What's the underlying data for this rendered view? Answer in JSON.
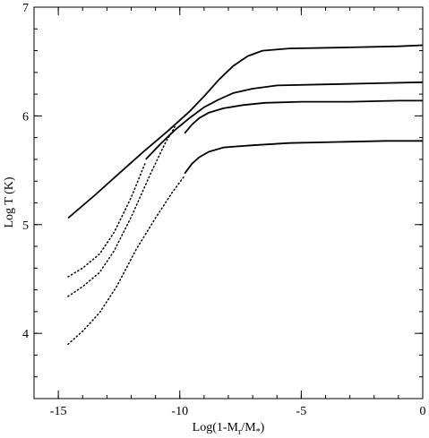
{
  "chart_data": {
    "type": "line",
    "xlabel": {
      "main": "Log(1-M",
      "sub1": "r",
      "mid": "/M",
      "sub2": "*",
      "end": ")"
    },
    "ylabel": "Log T (K)",
    "xlim": [
      -16,
      0
    ],
    "ylim": [
      3.4,
      7
    ],
    "xticks": [
      -15,
      -10,
      -5,
      0
    ],
    "yticks": [
      4,
      5,
      6,
      7
    ],
    "x_minor_step": 1,
    "y_minor_step": 0.2,
    "grid": false,
    "legend": "none",
    "series": [
      {
        "style": "solid",
        "points": [
          [
            -14.6,
            5.06
          ],
          [
            -13.5,
            5.27
          ],
          [
            -12.5,
            5.47
          ],
          [
            -11.5,
            5.67
          ],
          [
            -10.5,
            5.86
          ],
          [
            -9.6,
            6.04
          ],
          [
            -9.0,
            6.18
          ],
          [
            -8.4,
            6.33
          ],
          [
            -7.8,
            6.46
          ],
          [
            -7.2,
            6.55
          ],
          [
            -6.6,
            6.6
          ],
          [
            -5.5,
            6.62
          ],
          [
            -3.0,
            6.63
          ],
          [
            -1.0,
            6.64
          ],
          [
            0,
            6.65
          ]
        ]
      },
      {
        "style": "dotted",
        "points": [
          [
            -14.6,
            4.52
          ],
          [
            -14.0,
            4.6
          ],
          [
            -13.3,
            4.73
          ],
          [
            -12.7,
            4.93
          ],
          [
            -12.0,
            5.25
          ],
          [
            -11.4,
            5.58
          ]
        ]
      },
      {
        "style": "solid",
        "points": [
          [
            -11.4,
            5.6
          ],
          [
            -10.8,
            5.74
          ],
          [
            -10.2,
            5.87
          ],
          [
            -9.6,
            5.98
          ],
          [
            -9.0,
            6.08
          ],
          [
            -8.4,
            6.15
          ],
          [
            -7.8,
            6.21
          ],
          [
            -7.0,
            6.25
          ],
          [
            -6.0,
            6.28
          ],
          [
            -4.0,
            6.29
          ],
          [
            -2.0,
            6.3
          ],
          [
            0,
            6.31
          ]
        ]
      },
      {
        "style": "dotted",
        "points": [
          [
            -14.6,
            4.34
          ],
          [
            -14.0,
            4.43
          ],
          [
            -13.3,
            4.56
          ],
          [
            -12.7,
            4.76
          ],
          [
            -12.0,
            5.07
          ],
          [
            -11.2,
            5.47
          ],
          [
            -10.6,
            5.75
          ],
          [
            -10.2,
            5.9
          ]
        ]
      },
      {
        "style": "solid",
        "points": [
          [
            -9.8,
            5.84
          ],
          [
            -9.5,
            5.92
          ],
          [
            -9.2,
            5.98
          ],
          [
            -8.8,
            6.03
          ],
          [
            -8.2,
            6.07
          ],
          [
            -7.4,
            6.1
          ],
          [
            -6.5,
            6.12
          ],
          [
            -5.0,
            6.13
          ],
          [
            -3.0,
            6.13
          ],
          [
            -1.0,
            6.14
          ],
          [
            0,
            6.14
          ]
        ]
      },
      {
        "style": "dotted",
        "points": [
          [
            -14.6,
            3.9
          ],
          [
            -14.0,
            4.02
          ],
          [
            -13.3,
            4.19
          ],
          [
            -12.6,
            4.43
          ],
          [
            -11.8,
            4.77
          ],
          [
            -11.0,
            5.06
          ],
          [
            -10.3,
            5.3
          ],
          [
            -9.8,
            5.45
          ]
        ]
      },
      {
        "style": "solid",
        "points": [
          [
            -9.8,
            5.47
          ],
          [
            -9.5,
            5.56
          ],
          [
            -9.2,
            5.62
          ],
          [
            -8.8,
            5.67
          ],
          [
            -8.2,
            5.71
          ],
          [
            -7.0,
            5.73
          ],
          [
            -5.5,
            5.75
          ],
          [
            -3.5,
            5.76
          ],
          [
            -1.5,
            5.77
          ],
          [
            0,
            5.77
          ]
        ]
      }
    ]
  }
}
